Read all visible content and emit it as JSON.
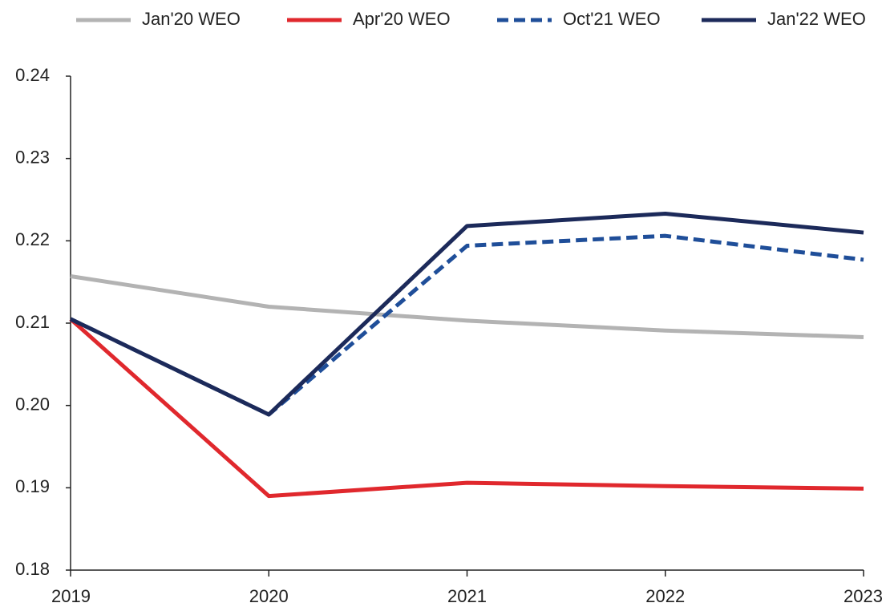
{
  "chart_data": {
    "type": "line",
    "x": [
      2019,
      2020,
      2021,
      2022,
      2023
    ],
    "xlim": [
      2019,
      2023
    ],
    "xticks": [
      2019,
      2020,
      2021,
      2022,
      2023
    ],
    "ylim": [
      0.18,
      0.24
    ],
    "yticks": [
      0.18,
      0.19,
      {
        "value": 0.2,
        "label": "0.20"
      },
      0.21,
      0.22,
      0.23,
      0.24
    ],
    "legend": "top",
    "series": [
      {
        "name": "Jan'20 WEO",
        "color": "#b3b3b3",
        "dashed": false,
        "values": [
          0.2157,
          0.212,
          0.2103,
          0.2091,
          0.2083
        ]
      },
      {
        "name": "Apr'20 WEO",
        "color": "#e0282d",
        "dashed": false,
        "values": [
          0.2105,
          0.189,
          0.1906,
          0.1902,
          0.1899
        ]
      },
      {
        "name": "Oct'21 WEO",
        "color": "#1f4e99",
        "dashed": true,
        "values": [
          0.2105,
          0.1989,
          0.2194,
          0.2206,
          0.2177
        ]
      },
      {
        "name": "Jan'22 WEO",
        "color": "#1c2a5a",
        "dashed": false,
        "values": [
          0.2105,
          0.1989,
          0.2218,
          0.2233,
          0.221
        ]
      }
    ]
  }
}
